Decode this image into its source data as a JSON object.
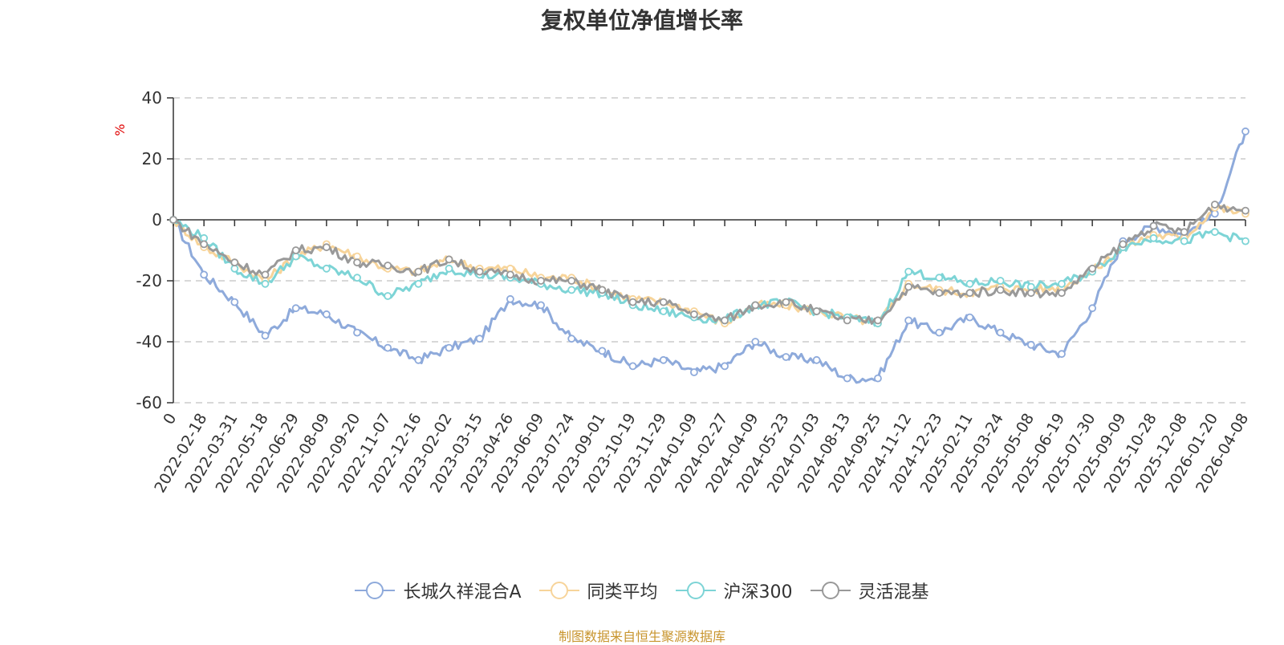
{
  "chart_data": {
    "type": "line",
    "title": "复权单位净值增长率",
    "ylabel": "%",
    "xlabel": "",
    "ylim": [
      -60,
      40
    ],
    "yticks": [
      "40",
      "20",
      "0",
      "-20",
      "-40",
      "-60"
    ],
    "grid": true,
    "legend_position": "bottom",
    "categories": [
      "0",
      "2022-02-18",
      "2022-03-31",
      "2022-05-18",
      "2022-06-29",
      "2022-08-09",
      "2022-09-20",
      "2022-11-07",
      "2022-12-16",
      "2023-02-02",
      "2023-03-15",
      "2023-04-26",
      "2023-06-09",
      "2023-07-24",
      "2023-09-01",
      "2023-10-19",
      "2023-11-29",
      "2024-01-09",
      "2024-02-27",
      "2024-04-09",
      "2024-05-23",
      "2024-07-03",
      "2024-08-13",
      "2024-09-25",
      "2024-11-12",
      "2024-12-23",
      "2025-02-11",
      "2025-03-24",
      "2025-05-08",
      "2025-06-19",
      "2025-07-30",
      "2025-09-09",
      "2025-10-28",
      "2025-12-08",
      "2026-01-20",
      "2026-04-08"
    ],
    "series": [
      {
        "name": "长城久祥混合A",
        "color": "#8eaadb",
        "values": [
          0,
          -18,
          -27,
          -38,
          -29,
          -31,
          -37,
          -42,
          -46,
          -42,
          -39,
          -26,
          -28,
          -39,
          -43,
          -48,
          -46,
          -50,
          -48,
          -40,
          -45,
          -46,
          -52,
          -52,
          -33,
          -37,
          -32,
          -37,
          -41,
          -44,
          -29,
          -7,
          -2,
          -5,
          2,
          29
        ]
      },
      {
        "name": "同类平均",
        "color": "#f7d49a",
        "values": [
          0,
          -9,
          -14,
          -20,
          -12,
          -8,
          -12,
          -16,
          -17,
          -13,
          -16,
          -16,
          -19,
          -19,
          -23,
          -26,
          -27,
          -30,
          -34,
          -28,
          -28,
          -30,
          -32,
          -34,
          -21,
          -23,
          -24,
          -22,
          -23,
          -22,
          -17,
          -9,
          -5,
          -6,
          4,
          2
        ]
      },
      {
        "name": "沪深300",
        "color": "#7dd4d6",
        "values": [
          0,
          -6,
          -16,
          -21,
          -12,
          -16,
          -19,
          -25,
          -21,
          -16,
          -18,
          -19,
          -21,
          -23,
          -24,
          -28,
          -30,
          -32,
          -33,
          -28,
          -27,
          -30,
          -32,
          -34,
          -17,
          -19,
          -21,
          -20,
          -22,
          -21,
          -17,
          -9,
          -6,
          -7,
          -4,
          -7
        ]
      },
      {
        "name": "灵活混基",
        "color": "#999999",
        "values": [
          0,
          -8,
          -14,
          -18,
          -10,
          -9,
          -14,
          -15,
          -17,
          -13,
          -17,
          -18,
          -20,
          -20,
          -23,
          -27,
          -27,
          -31,
          -33,
          -28,
          -27,
          -30,
          -33,
          -33,
          -22,
          -24,
          -24,
          -23,
          -24,
          -24,
          -16,
          -8,
          -2,
          -4,
          5,
          3
        ]
      }
    ]
  },
  "source_note": "制图数据来自恒生聚源数据库"
}
